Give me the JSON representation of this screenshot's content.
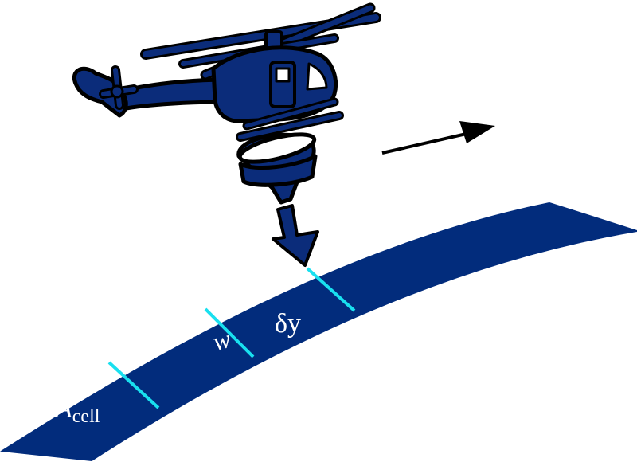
{
  "diagram": {
    "description_labels": {
      "cell_area_symbol": "A",
      "cell_area_subscript": "cell",
      "width_symbol": "w",
      "step_symbol": "δy"
    },
    "icons": {
      "vehicle": "helicopter-icon",
      "collector": "funnel-icon",
      "deposition": "down-arrow-icon",
      "motion": "direction-arrow-icon"
    },
    "colors": {
      "strip_fill": "#022c7c",
      "helicopter_fill": "#0b2c7a",
      "outline": "#000000",
      "cell_divider": "#19e0ef",
      "label_text": "#ffffff",
      "background": "#ffffff"
    }
  }
}
